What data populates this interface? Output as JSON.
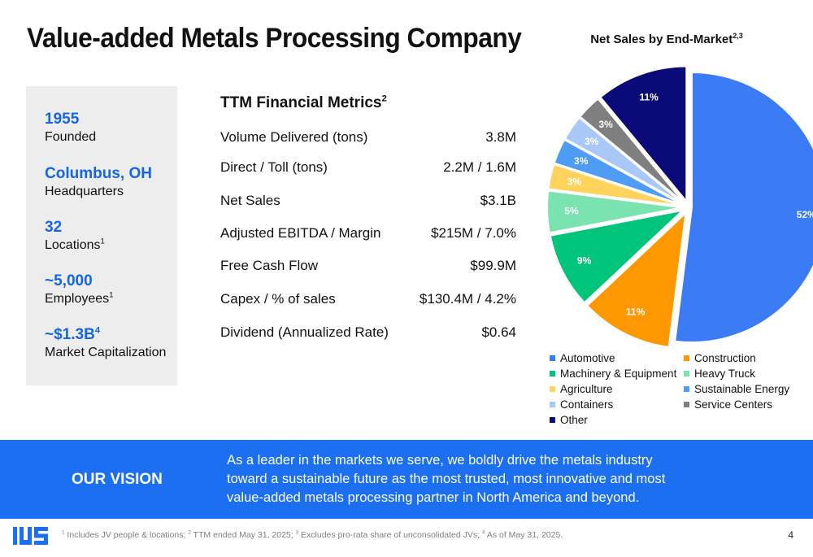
{
  "title": "Value-added Metals Processing Company",
  "facts": [
    {
      "value": "1955",
      "sup": "",
      "label": "Founded",
      "label_sup": ""
    },
    {
      "value": "Columbus, OH",
      "sup": "",
      "label": "Headquarters",
      "label_sup": ""
    },
    {
      "value": "32",
      "sup": "",
      "label": "Locations",
      "label_sup": "1"
    },
    {
      "value": "~5,000",
      "sup": "",
      "label": "Employees",
      "label_sup": "1"
    },
    {
      "value": "~$1.3B",
      "sup": "4",
      "label": "Market Capitalization",
      "label_sup": ""
    }
  ],
  "metrics": {
    "heading": "TTM Financial Metrics",
    "heading_sup": "2",
    "rows": [
      {
        "label": "Volume Delivered (tons)",
        "value": "3.8M"
      },
      {
        "label": "Direct / Toll (tons)",
        "value": "2.2M / 1.6M"
      },
      {
        "label": "Net Sales",
        "value": "$3.1B"
      },
      {
        "label": "Adjusted EBITDA / Margin",
        "value": "$215M / 7.0%"
      },
      {
        "label": "Free Cash Flow",
        "value": "$99.9M"
      },
      {
        "label": "Capex / % of sales",
        "value": "$130.4M / 4.2%"
      },
      {
        "label": "Dividend (Annualized Rate)",
        "value": "$0.64"
      }
    ]
  },
  "chart_data": {
    "type": "pie",
    "title": "Net Sales by End-Market",
    "title_sup": "2,3",
    "unit": "%",
    "slices": [
      {
        "name": "Automotive",
        "value": 52,
        "label": "52%",
        "color": "#3b7cf5",
        "label_color": "#ffffff"
      },
      {
        "name": "Construction",
        "value": 11,
        "label": "11%",
        "color": "#ff9800",
        "label_color": "#ffffff"
      },
      {
        "name": "Machinery & Equipment",
        "value": 9,
        "label": "9%",
        "color": "#00c47a",
        "label_color": "#ffffff"
      },
      {
        "name": "Heavy Truck",
        "value": 5,
        "label": "5%",
        "color": "#7be3b0",
        "label_color": "#ffffff"
      },
      {
        "name": "Agriculture",
        "value": 3,
        "label": "3%",
        "color": "#ffd35c",
        "label_color": "#ffffff"
      },
      {
        "name": "Sustainable Energy",
        "value": 3,
        "label": "3%",
        "color": "#4f9cf5",
        "label_color": "#ffffff"
      },
      {
        "name": "Containers",
        "value": 3,
        "label": "3%",
        "color": "#a9c8f7",
        "label_color": "#ffffff"
      },
      {
        "name": "Service Centers",
        "value": 3,
        "label": "3%",
        "color": "#7f7f7f",
        "label_color": "#ffffff"
      },
      {
        "name": "Other",
        "value": 11,
        "label": "11%",
        "color": "#0a0a78",
        "label_color": "#ffffff"
      }
    ],
    "legend_position": "bottom"
  },
  "vision": {
    "label": "OUR VISION",
    "text": "As a leader in the markets we serve, we boldly drive the metals industry toward a sustainable future as the most trusted, most innovative and most value-added metals processing partner in North America and beyond."
  },
  "footer": {
    "notes": [
      {
        "sup": "1",
        "text": " Includes JV people & locations; "
      },
      {
        "sup": "2",
        "text": " TTM ended May 31, 2025; "
      },
      {
        "sup": "3",
        "text": " Excludes pro-rata share of unconsolidated JVs; "
      },
      {
        "sup": "4",
        "text": " As of May 31, 2025."
      }
    ],
    "page": "4"
  },
  "colors": {
    "accent": "#1b6ff0",
    "fact_value": "#1565e8",
    "panel": "#ededed"
  },
  "logo": {
    "name": "company-logo"
  }
}
